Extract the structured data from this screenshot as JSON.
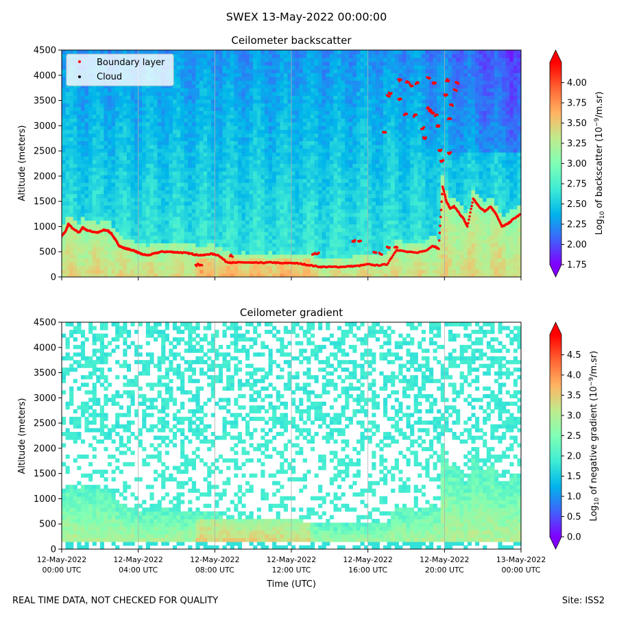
{
  "suptitle": "SWEX 13-May-2022 00:00:00",
  "footer": {
    "left": "REAL TIME DATA, NOT CHECKED FOR QUALITY",
    "right": "Site: ISS2"
  },
  "colors": {
    "rainbow": [
      "#8000ff",
      "#4062fa",
      "#00b5eb",
      "#40ecd4",
      "#80ffb4",
      "#c0eb8d",
      "#ffb462",
      "#ff6232",
      "#ff0000"
    ],
    "boundary_layer": "#ff0000",
    "cloud": "#000000",
    "grid": "#b0b0b0"
  },
  "chart_data": [
    {
      "type": "heatmap",
      "title": "Ceilometer backscatter",
      "xlabel": "",
      "ylabel": "Altitude (meters)",
      "ylim": [
        0,
        4500
      ],
      "xlim_hours": [
        0,
        24
      ],
      "yticks": [
        "0",
        "500",
        "1000",
        "1500",
        "2000",
        "2500",
        "3000",
        "3500",
        "4000",
        "4500"
      ],
      "colorbar": {
        "label_prefix": "Log",
        "label_sub": "10",
        "label_mid": " of backscatter (10",
        "label_sup": "−9",
        "label_suffix": "/m.sr)",
        "min": 1.75,
        "max": 4.25,
        "ticks": [
          "1.75",
          "2.00",
          "2.25",
          "2.50",
          "2.75",
          "3.00",
          "3.25",
          "3.50",
          "3.75",
          "4.00"
        ]
      },
      "legend": {
        "position": "upper-left",
        "entries": [
          {
            "label": "Boundary layer",
            "color": "#ff0000"
          },
          {
            "label": "Cloud",
            "color": "#000000"
          }
        ]
      },
      "boundary_layer_series": {
        "name": "Boundary layer",
        "x_hours": [
          0,
          0.2,
          0.35,
          0.6,
          0.9,
          1.1,
          1.3,
          1.6,
          1.9,
          2.2,
          2.4,
          2.6,
          2.8,
          3.0,
          3.2,
          3.4,
          3.6,
          3.8,
          4.0,
          4.2,
          4.5,
          4.8,
          5.2,
          5.6,
          6.0,
          6.4,
          6.8,
          7.0,
          7.4,
          7.8,
          8.2,
          8.6,
          9.0,
          9.5,
          10.0,
          10.5,
          11.0,
          11.5,
          12.0,
          12.5,
          13.0,
          13.5,
          14.0,
          14.5,
          15.0,
          15.5,
          16.0,
          16.5,
          17.0,
          17.5,
          18.0,
          18.5,
          19.0,
          19.4,
          19.7,
          19.9,
          20.1,
          20.3,
          20.5,
          20.8,
          21.0,
          21.2,
          21.5,
          21.8,
          22.1,
          22.4,
          22.7,
          23.0,
          23.3,
          23.6,
          24.0
        ],
        "values": [
          820,
          900,
          1050,
          950,
          880,
          980,
          930,
          900,
          880,
          930,
          920,
          860,
          740,
          620,
          580,
          560,
          540,
          520,
          480,
          450,
          430,
          460,
          500,
          500,
          490,
          480,
          460,
          440,
          430,
          460,
          430,
          300,
          280,
          290,
          280,
          280,
          290,
          270,
          280,
          260,
          230,
          200,
          200,
          200,
          210,
          220,
          250,
          230,
          250,
          540,
          500,
          480,
          520,
          620,
          560,
          1800,
          1500,
          1350,
          1400,
          1250,
          1150,
          1000,
          1550,
          1400,
          1300,
          1400,
          1250,
          1000,
          1050,
          1150,
          1250
        ],
        "extra_points": [
          {
            "x": 7.0,
            "y": 240
          },
          {
            "x": 7.2,
            "y": 240
          },
          {
            "x": 8.8,
            "y": 420
          },
          {
            "x": 13.1,
            "y": 460
          },
          {
            "x": 13.3,
            "y": 460
          },
          {
            "x": 15.2,
            "y": 720
          },
          {
            "x": 15.5,
            "y": 720
          },
          {
            "x": 16.3,
            "y": 480
          },
          {
            "x": 16.6,
            "y": 460
          },
          {
            "x": 17.0,
            "y": 580
          },
          {
            "x": 17.4,
            "y": 580
          },
          {
            "x": 16.8,
            "y": 2870
          },
          {
            "x": 17.0,
            "y": 3600
          },
          {
            "x": 17.1,
            "y": 3650
          },
          {
            "x": 17.6,
            "y": 3520
          },
          {
            "x": 17.6,
            "y": 3900
          },
          {
            "x": 17.9,
            "y": 3220
          },
          {
            "x": 18.0,
            "y": 3870
          },
          {
            "x": 18.2,
            "y": 3800
          },
          {
            "x": 18.4,
            "y": 3200
          },
          {
            "x": 18.5,
            "y": 3850
          },
          {
            "x": 18.8,
            "y": 2950
          },
          {
            "x": 18.9,
            "y": 2750
          },
          {
            "x": 19.1,
            "y": 3950
          },
          {
            "x": 19.1,
            "y": 3350
          },
          {
            "x": 19.2,
            "y": 3300
          },
          {
            "x": 19.3,
            "y": 3250
          },
          {
            "x": 19.4,
            "y": 3850
          },
          {
            "x": 19.5,
            "y": 3200
          },
          {
            "x": 19.6,
            "y": 3000
          },
          {
            "x": 19.7,
            "y": 2500
          },
          {
            "x": 19.8,
            "y": 2300
          },
          {
            "x": 20.0,
            "y": 3600
          },
          {
            "x": 20.1,
            "y": 3900
          },
          {
            "x": 20.2,
            "y": 3150
          },
          {
            "x": 20.2,
            "y": 2450
          },
          {
            "x": 20.3,
            "y": 3400
          },
          {
            "x": 20.5,
            "y": 3700
          },
          {
            "x": 20.6,
            "y": 3850
          }
        ]
      }
    },
    {
      "type": "heatmap",
      "title": "Ceilometer gradient",
      "xlabel": "Time (UTC)",
      "ylabel": "Altitude (meters)",
      "ylim": [
        0,
        4500
      ],
      "xlim_hours": [
        0,
        24
      ],
      "yticks": [
        "0",
        "500",
        "1000",
        "1500",
        "2000",
        "2500",
        "3000",
        "3500",
        "4000",
        "4500"
      ],
      "xticks": [
        {
          "line1": "12-May-2022",
          "line2": "00:00 UTC"
        },
        {
          "line1": "12-May-2022",
          "line2": "04:00 UTC"
        },
        {
          "line1": "12-May-2022",
          "line2": "08:00 UTC"
        },
        {
          "line1": "12-May-2022",
          "line2": "12:00 UTC"
        },
        {
          "line1": "12-May-2022",
          "line2": "16:00 UTC"
        },
        {
          "line1": "12-May-2022",
          "line2": "20:00 UTC"
        },
        {
          "line1": "13-May-2022",
          "line2": "00:00 UTC"
        }
      ],
      "colorbar": {
        "label_prefix": "Log",
        "label_sub": "10",
        "label_mid": " of negative gradient (10",
        "label_sup": "−9",
        "label_suffix": "/m.sr)",
        "min": 0.0,
        "max": 5.0,
        "ticks": [
          "0.0",
          "0.5",
          "1.0",
          "1.5",
          "2.0",
          "2.5",
          "3.0",
          "3.5",
          "4.0",
          "4.5"
        ]
      }
    }
  ]
}
